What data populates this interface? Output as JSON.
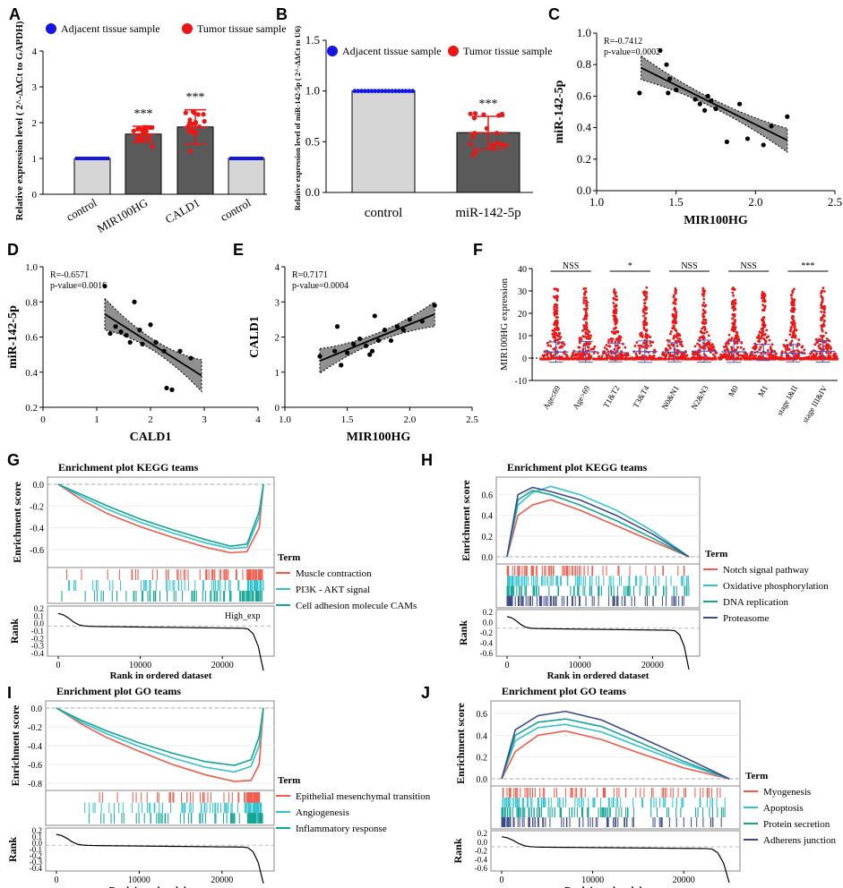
{
  "colors": {
    "blue": "#1515e6",
    "red": "#ee1515",
    "lightbar": "#d6d6d6",
    "darkbar": "#5a5a5a",
    "band": "#7d7d7d",
    "gsea_red": "#f35a4a",
    "gsea_cyan": "#33c3cf",
    "gsea_teal": "#14a695",
    "gsea_navy": "#3d4b8c",
    "stageblue": "#5057c0"
  },
  "panels": {
    "A": {
      "label": "A"
    },
    "B": {
      "label": "B"
    },
    "C": {
      "label": "C"
    },
    "D": {
      "label": "D"
    },
    "E": {
      "label": "E"
    },
    "F": {
      "label": "F"
    },
    "G": {
      "label": "G"
    },
    "H": {
      "label": "H"
    },
    "I": {
      "label": "I"
    },
    "J": {
      "label": "J"
    }
  },
  "chart_data": [
    {
      "id": "A",
      "type": "bar",
      "ylabel": "Relative expression level ( 2^-ΔΔCt to GAPDH)",
      "ylim": [
        0,
        4
      ],
      "yticks": [
        "0",
        "1",
        "2",
        "3",
        "4"
      ],
      "legend": [
        "Adjacent tissue sample",
        "Tumor tissue sample"
      ],
      "categories": [
        "control",
        "MIR100HG",
        "CALD1",
        "control"
      ],
      "values": [
        1.0,
        1.68,
        1.88,
        1.0
      ],
      "errors": [
        0,
        0.22,
        0.48,
        0
      ],
      "significance": [
        "",
        "***",
        "***",
        ""
      ],
      "sample_type": [
        "adjacent",
        "tumor",
        "tumor",
        "adjacent"
      ]
    },
    {
      "id": "B",
      "type": "bar",
      "ylabel": "Relative expression level of miR-142-5p ( 2^-ΔΔCt to U6)",
      "ylim": [
        0,
        1.5
      ],
      "yticks": [
        "0.0",
        "0.5",
        "1.0",
        "1.5"
      ],
      "legend": [
        "Adjacent tissue sample",
        "Tumor tissue sample"
      ],
      "categories": [
        "control",
        "miR-142-5p"
      ],
      "values": [
        1.0,
        0.59
      ],
      "errors": [
        0,
        0.16
      ],
      "significance": [
        "",
        "***"
      ]
    },
    {
      "id": "C",
      "type": "scatter",
      "xlabel": "MIR100HG",
      "ylabel": "miR-142-5p",
      "xlim": [
        1.0,
        2.5
      ],
      "ylim": [
        0.0,
        1.0
      ],
      "xticks": [
        "1.0",
        "1.5",
        "2.0",
        "2.5"
      ],
      "yticks": [
        "0.0",
        "0.2",
        "0.4",
        "0.6",
        "0.8",
        "1.0"
      ],
      "stat_r": "R=-0.7412",
      "stat_p": "p-value=0.0002",
      "x": [
        1.27,
        1.4,
        1.44,
        1.45,
        1.46,
        1.5,
        1.62,
        1.65,
        1.68,
        1.7,
        1.72,
        1.75,
        1.82,
        1.9,
        1.95,
        2.05,
        2.1,
        2.2
      ],
      "y": [
        0.62,
        0.89,
        0.8,
        0.62,
        0.71,
        0.64,
        0.58,
        0.55,
        0.51,
        0.6,
        0.57,
        0.52,
        0.31,
        0.55,
        0.33,
        0.29,
        0.41,
        0.47
      ],
      "fit": [
        [
          1.28,
          0.78
        ],
        [
          2.2,
          0.32
        ]
      ]
    },
    {
      "id": "D",
      "type": "scatter",
      "xlabel": "CALD1",
      "ylabel": "miR-142-5p",
      "xlim": [
        0,
        4
      ],
      "ylim": [
        0.2,
        1.0
      ],
      "xticks": [
        "0",
        "1",
        "2",
        "3",
        "4"
      ],
      "yticks": [
        "0.2",
        "0.4",
        "0.6",
        "0.8",
        "1.0"
      ],
      "stat_r": "R=-0.6571",
      "stat_p": "p-value=0.0016",
      "x": [
        1.15,
        1.25,
        1.35,
        1.45,
        1.55,
        1.62,
        1.7,
        1.8,
        1.85,
        2.0,
        2.1,
        2.25,
        2.3,
        2.4,
        2.55,
        2.75
      ],
      "y": [
        0.89,
        0.62,
        0.66,
        0.63,
        0.61,
        0.57,
        0.8,
        0.64,
        0.56,
        0.67,
        0.57,
        0.52,
        0.31,
        0.3,
        0.52,
        0.48
      ],
      "fit": [
        [
          1.15,
          0.73
        ],
        [
          2.95,
          0.38
        ]
      ]
    },
    {
      "id": "E",
      "type": "scatter",
      "xlabel": "MIR100HG",
      "ylabel": "CALD1",
      "xlim": [
        1.0,
        2.5
      ],
      "ylim": [
        0,
        4
      ],
      "xticks": [
        "1.0",
        "1.5",
        "2.0",
        "2.5"
      ],
      "yticks": [
        "0",
        "1",
        "2",
        "3",
        "4"
      ],
      "stat_r": "R=0.7171",
      "stat_p": "p-value=0.0004",
      "x": [
        1.28,
        1.4,
        1.42,
        1.45,
        1.5,
        1.55,
        1.6,
        1.65,
        1.68,
        1.7,
        1.72,
        1.75,
        1.8,
        1.85,
        1.9,
        1.95,
        2.0,
        2.1,
        2.2
      ],
      "y": [
        1.45,
        1.6,
        2.3,
        1.2,
        1.55,
        1.8,
        1.95,
        1.75,
        1.5,
        1.6,
        2.6,
        1.9,
        2.2,
        1.9,
        2.3,
        2.2,
        2.5,
        2.45,
        2.9
      ],
      "fit": [
        [
          1.28,
          1.32
        ],
        [
          2.2,
          2.65
        ]
      ]
    },
    {
      "id": "F",
      "type": "scatter",
      "ylabel": "MIR100HG expression",
      "ylim": [
        -10,
        40
      ],
      "yticks": [
        "-10",
        "0",
        "10",
        "20",
        "30",
        "40"
      ],
      "categories": [
        "Age≤69",
        "Age>69",
        "T1&T2",
        "T3&T4",
        "N0&N1",
        "N2&N3",
        "M0",
        "M1",
        "stage I&II",
        "stage III&IV"
      ],
      "means": [
        2.7,
        2.8,
        2.4,
        2.9,
        2.6,
        3.1,
        2.8,
        2.5,
        2.2,
        3.0
      ],
      "sd": [
        4.5,
        4.6,
        4.1,
        4.8,
        4.3,
        4.9,
        4.7,
        3.6,
        3.9,
        4.8
      ],
      "significance": [
        "NSS",
        "*",
        "NSS",
        "NSS",
        "***"
      ]
    },
    {
      "id": "G",
      "type": "line",
      "title": "Enrichment plot KEGG teams",
      "ylabel": "Enrichment score",
      "xlabel": "Rank in ordered dataset",
      "rank_ylabel": "Rank",
      "xlim": [
        0,
        25000
      ],
      "ylim": [
        -0.7,
        0.0
      ],
      "yticks": [
        "0.0",
        "-0.2",
        "-0.4",
        "-0.6"
      ],
      "xticks": [
        "0",
        "10000",
        "20000"
      ],
      "rank_yticks": [
        "0.2",
        "0.1",
        "0.0",
        "-0.1",
        "-0.2",
        "-0.3",
        "-0.4"
      ],
      "legend_title": "Term",
      "rank_label": "High_exp",
      "series": [
        {
          "name": "Muscle contraction",
          "x": [
            0,
            3000,
            6000,
            10000,
            14000,
            18000,
            21000,
            23000,
            24500,
            25000
          ],
          "y": [
            0,
            -0.15,
            -0.27,
            -0.39,
            -0.49,
            -0.58,
            -0.63,
            -0.62,
            -0.4,
            0
          ]
        },
        {
          "name": "PI3K - AKT signal",
          "x": [
            0,
            3000,
            6000,
            10000,
            14000,
            18000,
            21000,
            23000,
            24500,
            25000
          ],
          "y": [
            0,
            -0.12,
            -0.23,
            -0.35,
            -0.45,
            -0.54,
            -0.59,
            -0.58,
            -0.3,
            0
          ]
        },
        {
          "name": "Cell adhesion molecule CAMs",
          "x": [
            0,
            3000,
            6000,
            10000,
            14000,
            18000,
            21000,
            23000,
            24500,
            25000
          ],
          "y": [
            0,
            -0.1,
            -0.2,
            -0.32,
            -0.42,
            -0.51,
            -0.57,
            -0.55,
            -0.25,
            0
          ]
        }
      ]
    },
    {
      "id": "H",
      "type": "line",
      "title": "Enrichment plot KEGG teams",
      "ylabel": "Enrichment score",
      "xlabel": "Rank in ordered dataset",
      "rank_ylabel": "Rank",
      "xlim": [
        0,
        25000
      ],
      "ylim": [
        0.0,
        0.7
      ],
      "yticks": [
        "0.6",
        "0.4",
        "0.2",
        "0.0"
      ],
      "xticks": [
        "0",
        "10000",
        "20000"
      ],
      "rank_yticks": [
        "0.2",
        "0.0",
        "-0.2",
        "-0.4",
        "-0.6"
      ],
      "legend_title": "Term",
      "series": [
        {
          "name": "Notch signal pathway",
          "x": [
            0,
            1500,
            3500,
            6000,
            10000,
            15000,
            20000,
            25000
          ],
          "y": [
            0,
            0.4,
            0.5,
            0.55,
            0.45,
            0.3,
            0.15,
            0
          ]
        },
        {
          "name": "Oxidative phosphorylation",
          "x": [
            0,
            1500,
            3500,
            6000,
            10000,
            15000,
            20000,
            25000
          ],
          "y": [
            0,
            0.5,
            0.62,
            0.68,
            0.6,
            0.45,
            0.25,
            0
          ]
        },
        {
          "name": "DNA replication",
          "x": [
            0,
            1500,
            3500,
            6000,
            10000,
            15000,
            20000,
            25000
          ],
          "y": [
            0,
            0.55,
            0.64,
            0.6,
            0.5,
            0.35,
            0.18,
            0
          ]
        },
        {
          "name": "Proteasome",
          "x": [
            0,
            1500,
            3500,
            6000,
            10000,
            15000,
            20000,
            25000
          ],
          "y": [
            0,
            0.6,
            0.67,
            0.63,
            0.55,
            0.4,
            0.22,
            0
          ]
        }
      ]
    },
    {
      "id": "I",
      "type": "line",
      "title": "Enrichment plot GO teams",
      "ylabel": "Enrichment score",
      "xlabel": "Rank in ordered dataset",
      "rank_ylabel": "Rank",
      "xlim": [
        0,
        25000
      ],
      "ylim": [
        -0.8,
        0.0
      ],
      "yticks": [
        "0.0",
        "-0.2",
        "-0.4",
        "-0.6",
        "-0.8"
      ],
      "xticks": [
        "0",
        "10000",
        "20000"
      ],
      "rank_yticks": [
        "0.2",
        "0.1",
        "0.0",
        "-0.1",
        "-0.2",
        "-0.3",
        "-0.4"
      ],
      "legend_title": "Term",
      "series": [
        {
          "name": "Epithelial mesenchymal transition",
          "x": [
            0,
            3000,
            6000,
            10000,
            14000,
            18000,
            21500,
            23500,
            24500,
            25000
          ],
          "y": [
            0,
            -0.17,
            -0.31,
            -0.46,
            -0.6,
            -0.71,
            -0.78,
            -0.77,
            -0.6,
            0
          ]
        },
        {
          "name": "Angiogenesis",
          "x": [
            0,
            3000,
            6000,
            10000,
            14000,
            18000,
            21500,
            23500,
            24500,
            25000
          ],
          "y": [
            0,
            -0.15,
            -0.27,
            -0.41,
            -0.53,
            -0.63,
            -0.68,
            -0.62,
            -0.4,
            0
          ]
        },
        {
          "name": "Inflammatory response",
          "x": [
            0,
            3000,
            6000,
            10000,
            14000,
            18000,
            21500,
            23500,
            24500,
            25000
          ],
          "y": [
            0,
            -0.13,
            -0.24,
            -0.37,
            -0.48,
            -0.57,
            -0.61,
            -0.55,
            -0.3,
            0
          ]
        }
      ]
    },
    {
      "id": "J",
      "type": "line",
      "title": "Enrichment plot GO teams",
      "ylabel": "Enrichment score",
      "xlabel": "Rank in ordered dataset",
      "rank_ylabel": "Rank",
      "xlim": [
        0,
        25000
      ],
      "ylim": [
        0.0,
        0.65
      ],
      "yticks": [
        "0.6",
        "0.4",
        "0.2",
        "0.0"
      ],
      "xticks": [
        "0",
        "10000",
        "20000"
      ],
      "rank_yticks": [
        "0.2",
        "0.0",
        "-0.2",
        "-0.4",
        "-0.6"
      ],
      "legend_title": "Term",
      "series": [
        {
          "name": "Myogenesis",
          "x": [
            0,
            1500,
            4000,
            7000,
            11000,
            15000,
            20000,
            25000
          ],
          "y": [
            0,
            0.25,
            0.4,
            0.44,
            0.36,
            0.24,
            0.1,
            0
          ]
        },
        {
          "name": "Apoptosis",
          "x": [
            0,
            1500,
            4000,
            7000,
            11000,
            15000,
            20000,
            25000
          ],
          "y": [
            0,
            0.35,
            0.47,
            0.5,
            0.43,
            0.3,
            0.14,
            0
          ]
        },
        {
          "name": "Protein secretion",
          "x": [
            0,
            1500,
            4000,
            7000,
            11000,
            15000,
            20000,
            25000
          ],
          "y": [
            0,
            0.4,
            0.52,
            0.55,
            0.48,
            0.34,
            0.16,
            0
          ]
        },
        {
          "name": "Adherens junction",
          "x": [
            0,
            1500,
            4000,
            7000,
            11000,
            15000,
            20000,
            25000
          ],
          "y": [
            0,
            0.45,
            0.58,
            0.62,
            0.54,
            0.39,
            0.2,
            0
          ]
        }
      ]
    }
  ]
}
